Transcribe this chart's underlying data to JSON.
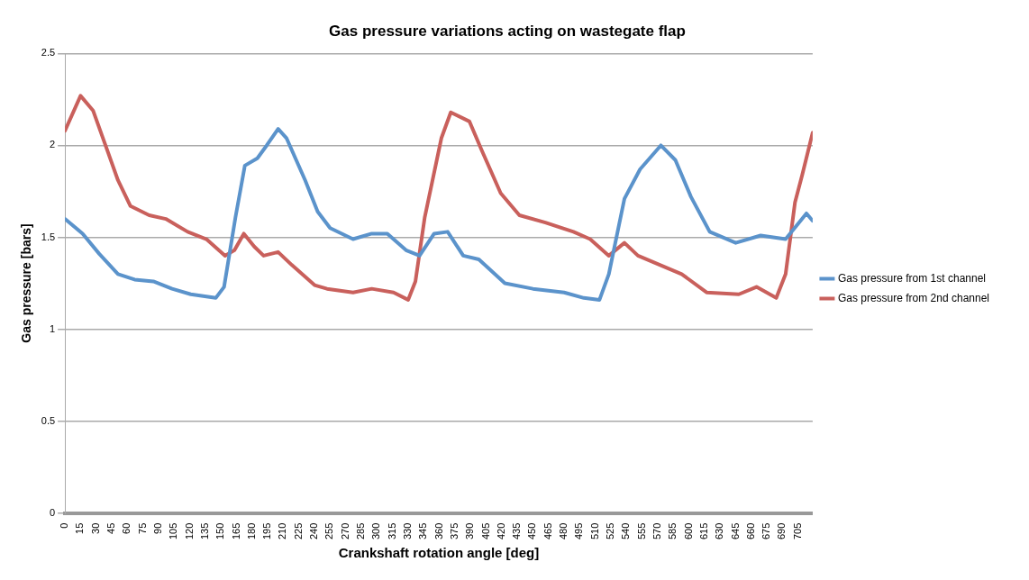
{
  "chart_data": {
    "type": "line",
    "title": "Gas pressure variations acting on wastegate flap",
    "xlabel": "Crankshaft rotation angle [deg]",
    "ylabel": "Gas pressure [bars]",
    "xlim": [
      0,
      719
    ],
    "xticks": [
      0,
      15,
      30,
      45,
      60,
      75,
      90,
      105,
      120,
      135,
      150,
      165,
      180,
      195,
      210,
      225,
      240,
      255,
      270,
      285,
      300,
      315,
      330,
      345,
      360,
      375,
      390,
      405,
      420,
      435,
      450,
      465,
      480,
      495,
      510,
      525,
      540,
      555,
      570,
      585,
      600,
      615,
      630,
      645,
      660,
      675,
      690,
      705
    ],
    "ylim": [
      0,
      2.5
    ],
    "yticks": [
      0,
      0.5,
      1,
      1.5,
      2,
      2.5
    ],
    "grid": "y",
    "legend": "right",
    "marker": "none",
    "line_style": "solid",
    "series": [
      {
        "name": "Gas pressure from 1st channel",
        "color": "#5b93cb",
        "x": [
          0,
          17,
          33,
          51,
          67,
          85,
          103,
          121,
          145,
          153,
          164,
          173,
          185,
          194,
          205,
          213,
          231,
          243,
          255,
          277,
          295,
          310,
          328,
          341,
          355,
          368,
          383,
          398,
          423,
          450,
          480,
          499,
          514,
          523,
          538,
          553,
          573,
          587,
          602,
          620,
          645,
          669,
          693,
          713,
          719
        ],
        "values": [
          1.6,
          1.52,
          1.41,
          1.3,
          1.27,
          1.26,
          1.22,
          1.19,
          1.17,
          1.23,
          1.61,
          1.89,
          1.93,
          2.0,
          2.09,
          2.04,
          1.81,
          1.64,
          1.55,
          1.49,
          1.52,
          1.52,
          1.43,
          1.4,
          1.52,
          1.53,
          1.4,
          1.38,
          1.25,
          1.22,
          1.2,
          1.17,
          1.16,
          1.3,
          1.71,
          1.87,
          2.0,
          1.92,
          1.72,
          1.53,
          1.47,
          1.51,
          1.49,
          1.63,
          1.59
        ]
      },
      {
        "name": "Gas pressure from 2nd channel",
        "color": "#c9605c",
        "x": [
          0,
          15,
          27,
          39,
          51,
          63,
          81,
          97,
          118,
          136,
          154,
          163,
          172,
          182,
          191,
          205,
          218,
          240,
          252,
          277,
          295,
          316,
          330,
          337,
          346,
          362,
          371,
          389,
          401,
          419,
          437,
          462,
          489,
          505,
          523,
          538,
          551,
          572,
          593,
          617,
          648,
          665,
          684,
          693,
          702,
          709,
          719
        ],
        "values": [
          2.08,
          2.27,
          2.19,
          2.0,
          1.81,
          1.67,
          1.62,
          1.6,
          1.53,
          1.49,
          1.4,
          1.43,
          1.52,
          1.45,
          1.4,
          1.42,
          1.35,
          1.24,
          1.22,
          1.2,
          1.22,
          1.2,
          1.16,
          1.26,
          1.61,
          2.04,
          2.18,
          2.13,
          1.97,
          1.74,
          1.62,
          1.58,
          1.53,
          1.49,
          1.4,
          1.47,
          1.4,
          1.35,
          1.3,
          1.2,
          1.19,
          1.23,
          1.17,
          1.3,
          1.69,
          1.84,
          2.07
        ]
      }
    ]
  }
}
